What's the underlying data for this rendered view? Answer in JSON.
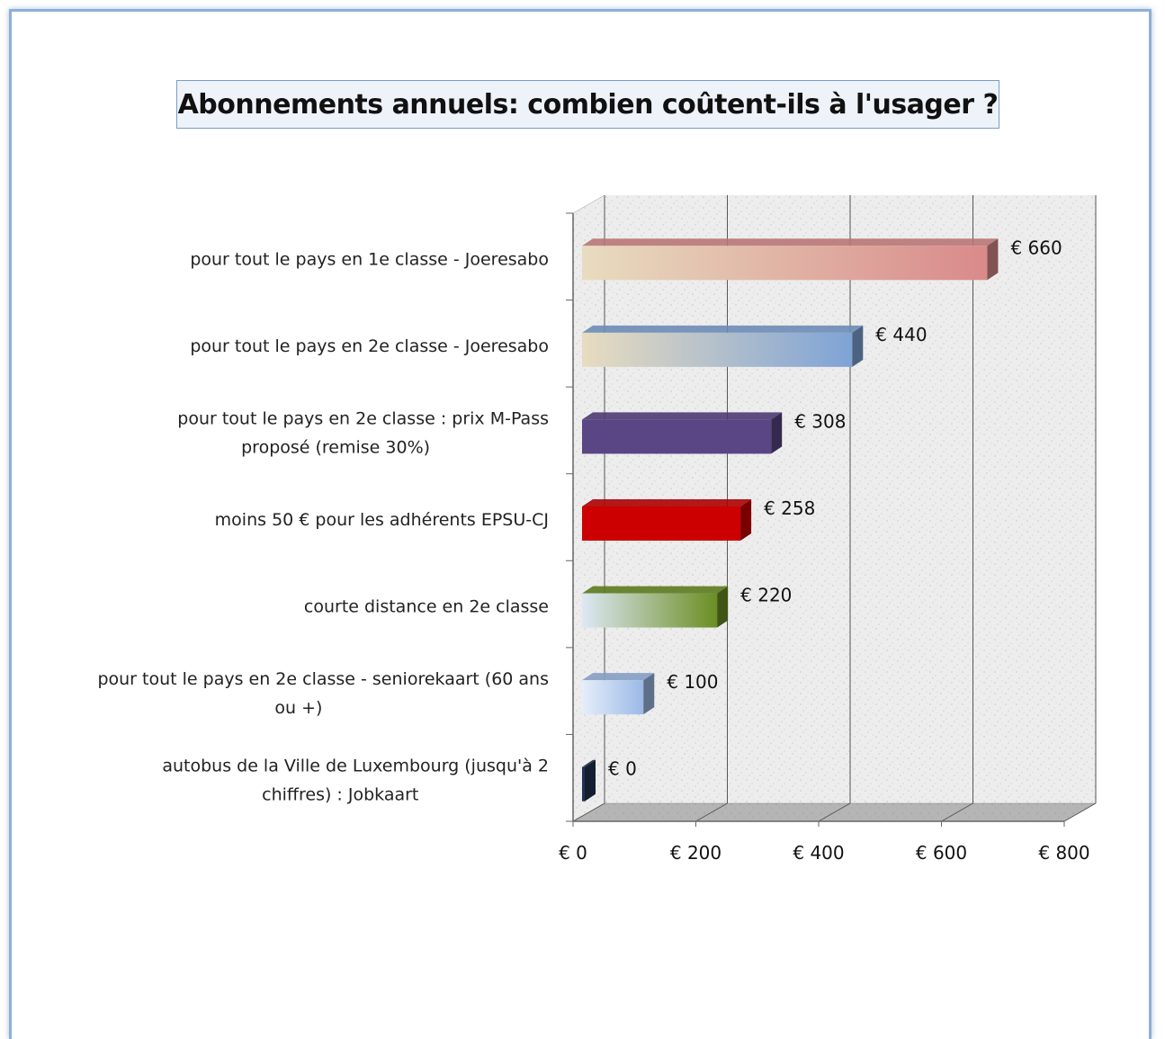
{
  "chart_data": {
    "type": "bar",
    "orientation": "horizontal",
    "title": "Abonnements annuels: combien coûtent-ils à l'usager ?",
    "categories": [
      [
        "pour tout  le pays en 1e classe - Joeresabo"
      ],
      [
        "pour tout  le pays en 2e classe - Joeresabo"
      ],
      [
        "pour  tout  le pays en 2e classe : prix M-Pass",
        "proposé (remise 30%)"
      ],
      [
        "moins 50 € pour les adhérents EPSU-CJ"
      ],
      [
        "courte distance en 2e classe"
      ],
      [
        "pour tout  le pays en 2e classe - seniorekaart (60 ans",
        "ou +)"
      ],
      [
        "autobus de  la Ville de Luxembourg (jusqu'à 2",
        "chiffres) : Jobkaart"
      ]
    ],
    "values": [
      660,
      440,
      308,
      258,
      220,
      100,
      0
    ],
    "value_labels": [
      "€ 660",
      "€ 440",
      "€ 308",
      "€ 258",
      "€ 220",
      "€ 100",
      "€ 0"
    ],
    "xlim": [
      0,
      800
    ],
    "x_ticks": [
      "€ 0",
      "€ 200",
      "€ 400",
      "€ 600",
      "€ 800"
    ],
    "grid": true,
    "bar_colors": [
      [
        "#e8dcc0",
        "#d98a8a"
      ],
      [
        "#e8dcc0",
        "#7ea3d6"
      ],
      [
        "#5a4585",
        "#5a4585"
      ],
      [
        "#cc0000",
        "#cc0000"
      ],
      [
        "#dde8f5",
        "#6b8e23"
      ],
      [
        "#e6eefa",
        "#9bb9e6"
      ],
      [
        "#1f3350",
        "#1f3350"
      ]
    ]
  }
}
